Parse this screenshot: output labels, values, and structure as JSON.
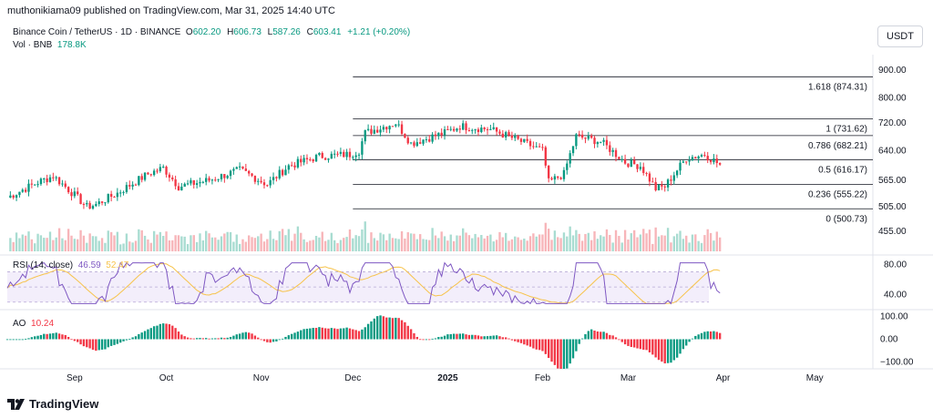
{
  "header": {
    "published": "muthonikiama09 published on TradingView.com, Mar 31, 2025 14:40 UTC"
  },
  "symbol": {
    "title": "Binance Coin / TetherUS · 1D · BINANCE",
    "open_label": "O",
    "open": "602.20",
    "high_label": "H",
    "high": "606.73",
    "low_label": "L",
    "low": "587.26",
    "close_label": "C",
    "close": "603.41",
    "change": "+1.21 (+0.20%)"
  },
  "volume": {
    "label": "Vol · BNB",
    "value": "178.8K"
  },
  "currency": "USDT",
  "rsi": {
    "label": "RSI (14, close)",
    "value": "46.59",
    "ma_value": "52.47"
  },
  "ao": {
    "label": "AO",
    "value": "10.24"
  },
  "footer": {
    "brand": "TradingView"
  },
  "colors": {
    "up": "#089981",
    "down": "#f23645",
    "rsi_line": "#7e57c2",
    "rsi_ma": "#f7c34a",
    "fib_line": "#131722"
  },
  "chart_data": {
    "type": "candlestick",
    "title": "Binance Coin / TetherUS · 1D · BINANCE",
    "price_axis": {
      "ticks": [
        455,
        505,
        565,
        640,
        720,
        800,
        900
      ],
      "tick_labels": [
        "455.00",
        "505.00",
        "565.00",
        "640.00",
        "720.00",
        "800.00",
        "900.00"
      ],
      "scale": "log",
      "range": [
        420,
        960
      ]
    },
    "x_axis": {
      "labels": [
        "Sep",
        "Oct",
        "Nov",
        "Dec",
        "2025",
        "Feb",
        "Mar",
        "Apr",
        "May"
      ],
      "start_date": "2024-08-10",
      "end_date": "2025-05-20"
    },
    "fibonacci": [
      {
        "label": "1.618 (874.31)",
        "value": 874.31
      },
      {
        "label": "1 (731.62)",
        "value": 731.62
      },
      {
        "label": "0.786 (682.21)",
        "value": 682.21
      },
      {
        "label": "0.5 (616.17)",
        "value": 616.17
      },
      {
        "label": "0.236 (555.22)",
        "value": 555.22
      },
      {
        "label": "0 (500.73)",
        "value": 500.73
      }
    ],
    "close_path": {
      "dates": [
        "2024-08-10",
        "2024-08-20",
        "2024-08-25",
        "2024-09-05",
        "2024-09-08",
        "2024-09-15",
        "2024-09-25",
        "2024-09-30",
        "2024-10-05",
        "2024-10-15",
        "2024-10-25",
        "2024-11-03",
        "2024-11-10",
        "2024-11-20",
        "2024-11-30",
        "2024-12-03",
        "2024-12-05",
        "2024-12-15",
        "2024-12-20",
        "2024-12-31",
        "2025-01-05",
        "2025-01-15",
        "2025-01-25",
        "2025-02-01",
        "2025-02-03",
        "2025-02-08",
        "2025-02-12",
        "2025-02-20",
        "2025-02-28",
        "2025-03-05",
        "2025-03-10",
        "2025-03-13",
        "2025-03-20",
        "2025-03-26",
        "2025-03-31"
      ],
      "values": [
        525,
        560,
        575,
        505,
        510,
        535,
        580,
        595,
        550,
        565,
        590,
        555,
        600,
        625,
        630,
        640,
        690,
        720,
        660,
        690,
        710,
        700,
        665,
        640,
        560,
        580,
        680,
        665,
        610,
        600,
        545,
        550,
        620,
        630,
        603
      ]
    },
    "rsi": {
      "range": [
        20,
        90
      ],
      "ticks": [
        40,
        80
      ],
      "band": [
        30,
        70
      ],
      "last": 46.59,
      "ma_last": 52.47
    },
    "ao": {
      "range": [
        -130,
        130
      ],
      "ticks": [
        100,
        0,
        -100
      ],
      "tick_labels": [
        "100.00",
        "0.00",
        "−100.00"
      ],
      "last": 10.24
    },
    "current_price": 603.41
  }
}
